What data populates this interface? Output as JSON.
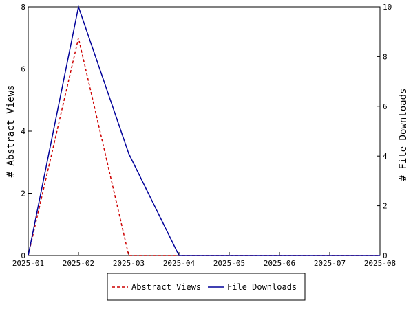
{
  "chart_data": {
    "type": "line",
    "x": [
      "2025-01",
      "2025-02",
      "2025-03",
      "2025-04",
      "2025-05",
      "2025-06",
      "2025-07",
      "2025-08"
    ],
    "series": [
      {
        "name": "Abstract Views",
        "axis": "left",
        "values": [
          0,
          7,
          0,
          0,
          0,
          0,
          0,
          0
        ],
        "color": "#cc0000",
        "style": "dashed"
      },
      {
        "name": "File Downloads",
        "axis": "right",
        "values": [
          0,
          10,
          4.1,
          0,
          0,
          0,
          0,
          0
        ],
        "color": "#000099",
        "style": "solid"
      }
    ],
    "ylabel_left": "# Abstract Views",
    "ylabel_right": "# File Downloads",
    "ylim_left": [
      0,
      8
    ],
    "ylim_right": [
      0,
      10
    ],
    "yticks_left": [
      0,
      2,
      4,
      6,
      8
    ],
    "yticks_right": [
      0,
      2,
      4,
      6,
      8,
      10
    ],
    "legend_position": "bottom-center",
    "grid": false
  }
}
